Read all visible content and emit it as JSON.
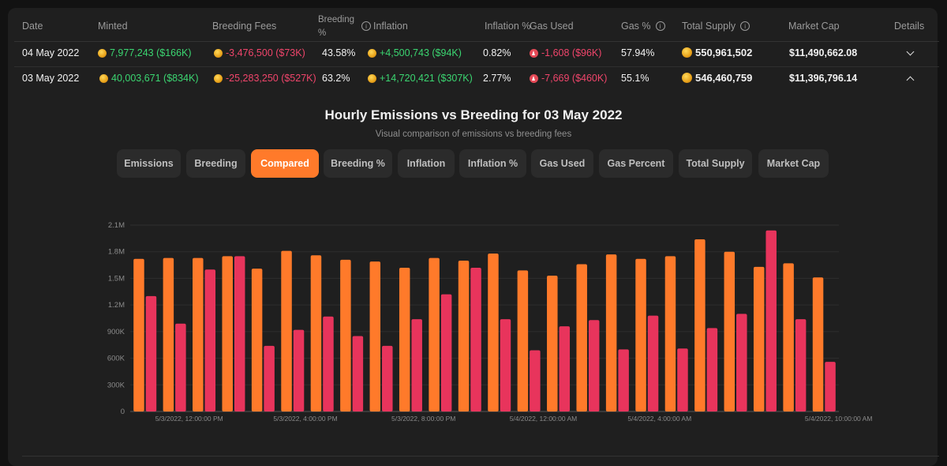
{
  "table": {
    "headers": {
      "date": "Date",
      "minted": "Minted",
      "breeding_fees": "Breeding Fees",
      "breeding_pct_1": "Breeding",
      "breeding_pct_2": "%",
      "inflation": "Inflation",
      "inflation_pct": "Inflation %",
      "gas_used": "Gas Used",
      "gas_pct": "Gas %",
      "total_supply": "Total Supply",
      "market_cap": "Market Cap",
      "details": "Details"
    },
    "rows": [
      {
        "date": "04 May 2022",
        "minted": "7,977,243 ($166K)",
        "breeding_fees": "-3,476,500 ($73K)",
        "breeding_pct": "43.58%",
        "inflation": "+4,500,743 ($94K)",
        "inflation_pct": "0.82%",
        "gas_used": "-1,608 ($96K)",
        "gas_pct": "57.94%",
        "total_supply": "550,961,502",
        "market_cap": "$11,490,662.08",
        "expanded": false
      },
      {
        "date": "03 May 2022",
        "minted": "40,003,671 ($834K)",
        "breeding_fees": "-25,283,250 ($527K)",
        "breeding_pct": "63.2%",
        "inflation": "+14,720,421 ($307K)",
        "inflation_pct": "2.77%",
        "gas_used": "-7,669 ($460K)",
        "gas_pct": "55.1%",
        "total_supply": "546,460,759",
        "market_cap": "$11,396,796.14",
        "expanded": true
      }
    ]
  },
  "chart_section": {
    "title": "Hourly Emissions vs Breeding for 03 May 2022",
    "subtitle": "Visual comparison of emissions vs breeding fees"
  },
  "tabs": [
    {
      "label": "Emissions",
      "active": false
    },
    {
      "label": "Breeding",
      "active": false
    },
    {
      "label": "Compared",
      "active": true
    },
    {
      "label": "Breeding %",
      "active": false
    },
    {
      "label": "Inflation",
      "active": false
    },
    {
      "label": "Inflation %",
      "active": false
    },
    {
      "label": "Gas Used",
      "active": false
    },
    {
      "label": "Gas Percent",
      "active": false
    },
    {
      "label": "Total Supply",
      "active": false
    },
    {
      "label": "Market Cap",
      "active": false
    }
  ],
  "colors": {
    "emissions": "#ff7a2a",
    "breeding": "#e8345c",
    "positive": "#3bd671",
    "negative": "#f0456b",
    "accent": "#ff7a2a"
  },
  "chart_data": {
    "type": "bar",
    "y_ticks": [
      "0",
      "300K",
      "600K",
      "900K",
      "1.2M",
      "1.5M",
      "1.8M",
      "2.1M"
    ],
    "y_tick_values": [
      0,
      300000,
      600000,
      900000,
      1200000,
      1500000,
      1800000,
      2100000
    ],
    "ylim": [
      0,
      2100000
    ],
    "x_tick_labels": [
      {
        "index": 0,
        "label": "5/3/2022, 12:00:00 PM"
      },
      {
        "index": 4,
        "label": "5/3/2022, 4:00:00 PM"
      },
      {
        "index": 8,
        "label": "5/3/2022, 8:00:00 PM"
      },
      {
        "index": 12,
        "label": "5/4/2022, 12:00:00 AM"
      },
      {
        "index": 16,
        "label": "5/4/2022, 4:00:00 AM"
      },
      {
        "index": 22,
        "label": "5/4/2022, 10:00:00 AM"
      }
    ],
    "grid": true,
    "series": [
      {
        "values": [
          1720000,
          1730000,
          1730000,
          1750000,
          1610000,
          1810000,
          1760000,
          1710000,
          1690000,
          1620000,
          1730000,
          1700000,
          1780000,
          1590000,
          1530000,
          1660000,
          1770000,
          1720000,
          1750000,
          1940000,
          1800000,
          1630000,
          1670000,
          1510000
        ]
      },
      {
        "values": [
          1300000,
          990000,
          1600000,
          1750000,
          740000,
          920000,
          1070000,
          850000,
          740000,
          1040000,
          1320000,
          1620000,
          1040000,
          690000,
          960000,
          1030000,
          700000,
          1080000,
          710000,
          940000,
          1100000,
          2040000,
          1040000,
          560000
        ]
      }
    ]
  }
}
